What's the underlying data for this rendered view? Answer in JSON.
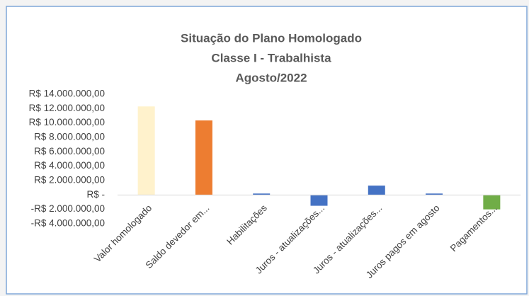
{
  "chart_data": {
    "type": "bar",
    "title": [
      "Situação do Plano Homologado",
      "Classe I - Trabalhista",
      "Agosto/2022"
    ],
    "categories": [
      "Valor homologado",
      "Saldo devedor em...",
      "Habilitações",
      "Juros - atualizações...",
      "Juros - atualizações...",
      "Juros pagos em agosto",
      "Pagamentos..."
    ],
    "values": [
      12300000,
      10350000,
      200000,
      -1500000,
      1300000,
      200000,
      -2000000
    ],
    "colors": [
      "#fff2cc",
      "#ed7d31",
      "#4472c4",
      "#4472c4",
      "#4472c4",
      "#4472c4",
      "#70ad47"
    ],
    "ylim": [
      -4000000,
      14000000
    ],
    "yticks": [
      {
        "value": -4000000,
        "label": "-R$ 4.000.000,00"
      },
      {
        "value": -2000000,
        "label": "-R$ 2.000.000,00"
      },
      {
        "value": 0,
        "label": "R$ -"
      },
      {
        "value": 2000000,
        "label": "R$ 2.000.000,00"
      },
      {
        "value": 4000000,
        "label": "R$ 4.000.000,00"
      },
      {
        "value": 6000000,
        "label": "R$ 6.000.000,00"
      },
      {
        "value": 8000000,
        "label": "R$ 8.000.000,00"
      },
      {
        "value": 10000000,
        "label": "R$ 10.000.000,00"
      },
      {
        "value": 12000000,
        "label": "R$ 12.000.000,00"
      },
      {
        "value": 14000000,
        "label": "R$ 14.000.000,00"
      }
    ],
    "grid": false
  }
}
